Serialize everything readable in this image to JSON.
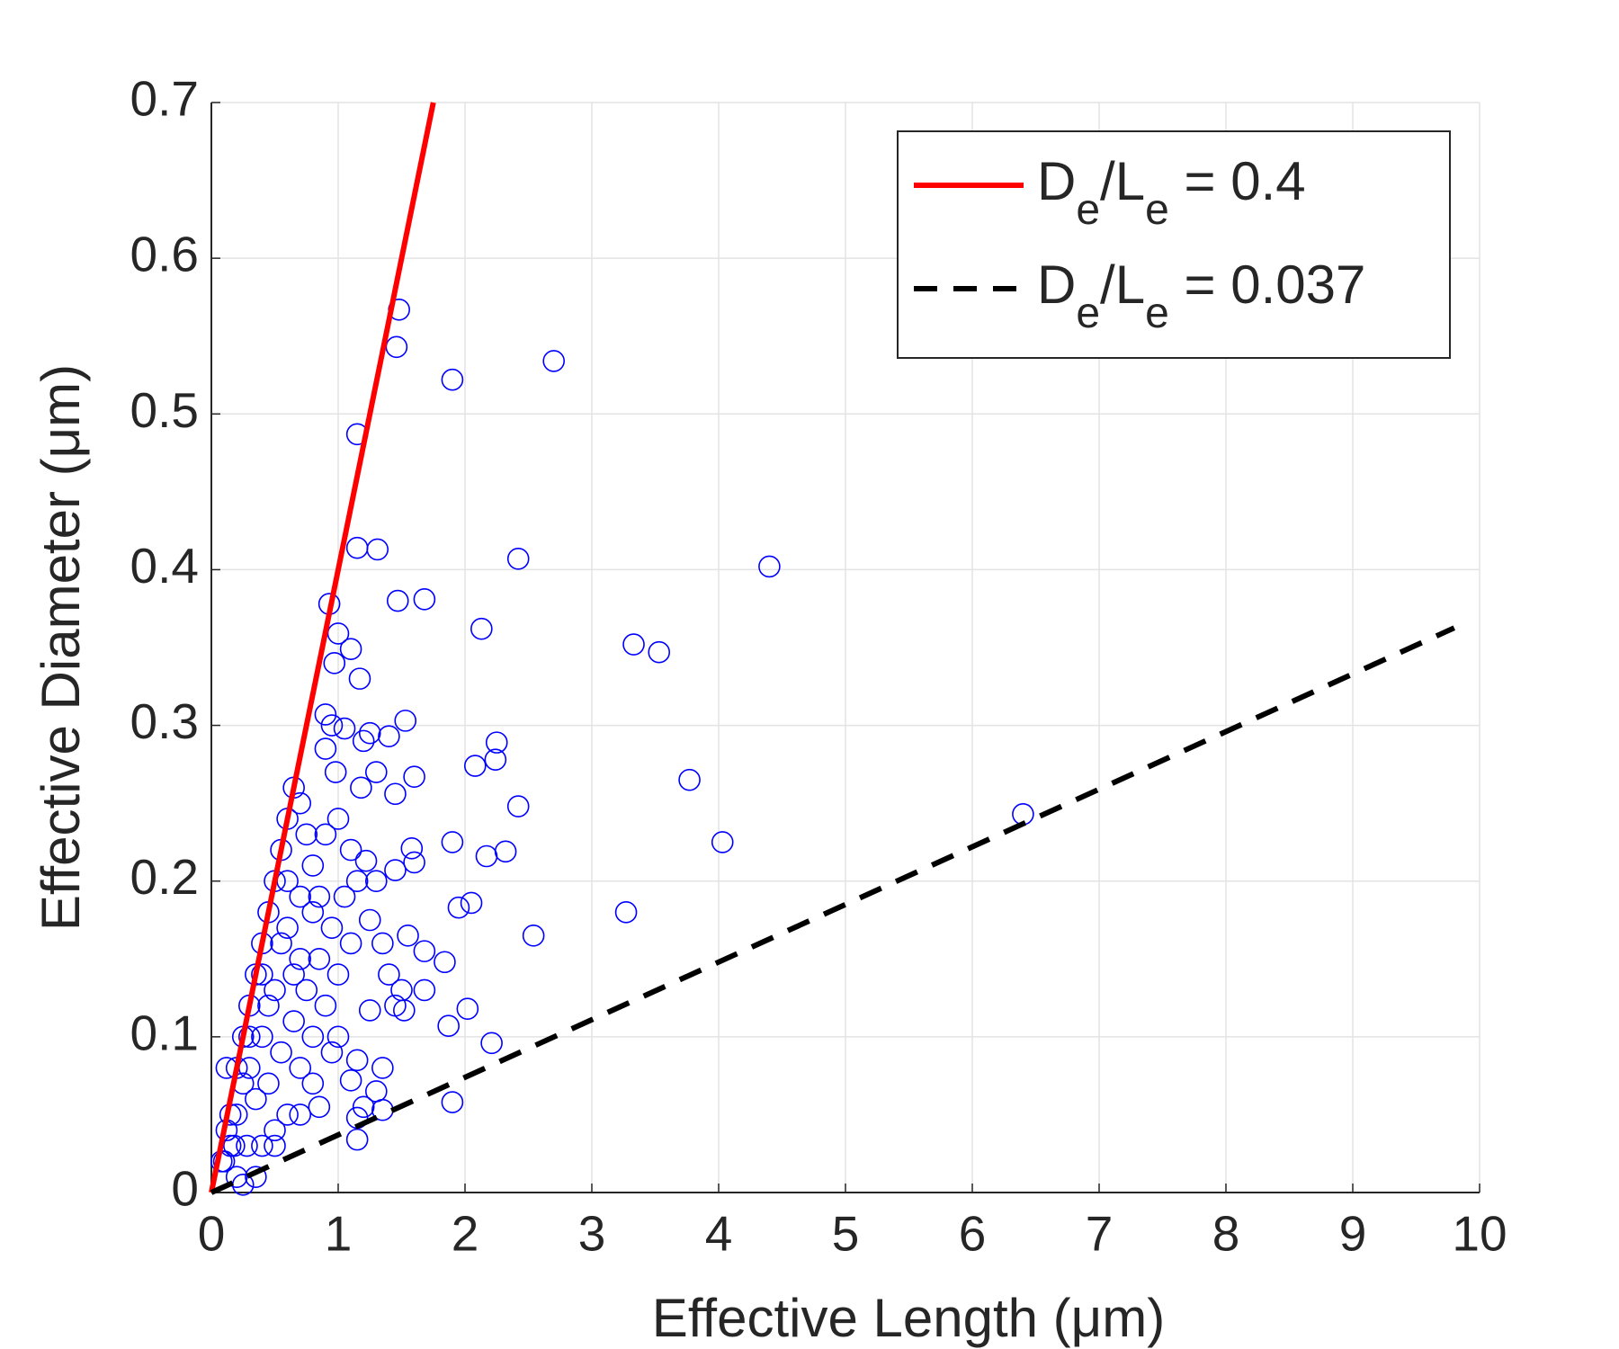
{
  "chart_data": {
    "type": "scatter",
    "xlabel": "Effective Length (μm)",
    "ylabel": "Effective Diameter (μm)",
    "xlim": [
      0,
      10
    ],
    "ylim": [
      0,
      0.7
    ],
    "xticks": [
      0,
      1,
      2,
      3,
      4,
      5,
      6,
      7,
      8,
      9,
      10
    ],
    "yticks": [
      0,
      0.1,
      0.2,
      0.3,
      0.4,
      0.5,
      0.6,
      0.7
    ],
    "grid": true,
    "legend": "top-right",
    "series": [
      {
        "type": "scatter",
        "color": "#0000ff",
        "x": [
          1.48,
          1.46,
          1.9,
          2.7,
          1.15,
          2.42,
          4.4,
          1.15,
          1.31,
          1.47,
          1.68,
          0.93,
          2.13,
          3.33,
          3.53,
          1.0,
          1.1,
          0.97,
          1.17,
          0.9,
          1.53,
          0.95,
          1.05,
          1.2,
          1.25,
          1.4,
          2.25,
          0.9,
          2.24,
          2.08,
          1.6,
          1.3,
          3.77,
          0.98,
          1.18,
          1.45,
          2.42,
          6.4,
          4.03,
          1.9,
          1.58,
          2.32,
          2.17,
          1.6,
          1.45,
          1.22,
          1.3,
          2.05,
          1.95,
          3.27,
          1.25,
          1.55,
          2.54,
          1.35,
          1.68,
          1.84,
          1.4,
          1.5,
          1.68,
          1.45,
          1.52,
          2.02,
          1.25,
          1.87,
          2.21,
          1.0,
          1.15,
          1.35,
          1.1,
          1.3,
          1.9,
          1.35,
          1.2,
          1.15,
          1.15,
          0.85,
          0.7,
          0.8,
          0.35,
          0.25,
          0.2,
          0.4,
          0.5,
          0.1,
          0.15,
          0.2,
          0.25,
          0.3,
          0.35,
          0.4,
          0.45,
          0.5,
          0.55,
          0.6,
          0.65,
          0.7,
          0.75,
          0.8,
          0.85,
          0.6,
          0.7,
          0.5,
          0.4,
          0.3,
          0.2,
          0.35,
          0.45,
          0.55,
          0.65,
          0.75,
          0.85,
          0.95,
          1.05,
          0.9,
          1.0,
          0.6,
          0.5,
          0.28,
          0.18,
          0.12,
          0.08,
          0.6,
          0.7,
          0.8,
          0.9,
          1.0,
          1.1,
          1.15,
          1.1,
          0.95,
          0.8,
          0.7,
          0.65,
          0.55,
          0.45,
          0.4,
          0.3,
          0.25,
          0.15,
          0.12
        ],
        "values": [
          0.567,
          0.543,
          0.522,
          0.534,
          0.487,
          0.407,
          0.402,
          0.414,
          0.413,
          0.38,
          0.381,
          0.378,
          0.362,
          0.352,
          0.347,
          0.359,
          0.349,
          0.34,
          0.33,
          0.307,
          0.303,
          0.3,
          0.298,
          0.29,
          0.295,
          0.293,
          0.289,
          0.285,
          0.278,
          0.274,
          0.267,
          0.27,
          0.265,
          0.27,
          0.26,
          0.256,
          0.248,
          0.243,
          0.225,
          0.225,
          0.221,
          0.219,
          0.216,
          0.212,
          0.207,
          0.213,
          0.2,
          0.186,
          0.183,
          0.18,
          0.175,
          0.165,
          0.165,
          0.16,
          0.155,
          0.148,
          0.14,
          0.13,
          0.13,
          0.12,
          0.117,
          0.118,
          0.117,
          0.107,
          0.096,
          0.1,
          0.085,
          0.08,
          0.072,
          0.065,
          0.058,
          0.053,
          0.055,
          0.048,
          0.034,
          0.055,
          0.05,
          0.07,
          0.01,
          0.005,
          0.01,
          0.03,
          0.03,
          0.02,
          0.05,
          0.08,
          0.1,
          0.12,
          0.14,
          0.16,
          0.18,
          0.2,
          0.22,
          0.24,
          0.26,
          0.25,
          0.23,
          0.21,
          0.19,
          0.17,
          0.15,
          0.13,
          0.1,
          0.08,
          0.05,
          0.06,
          0.07,
          0.09,
          0.11,
          0.13,
          0.15,
          0.17,
          0.19,
          0.12,
          0.14,
          0.05,
          0.04,
          0.03,
          0.03,
          0.04,
          0.02,
          0.2,
          0.19,
          0.18,
          0.23,
          0.24,
          0.22,
          0.2,
          0.16,
          0.09,
          0.1,
          0.08,
          0.14,
          0.16,
          0.12,
          0.14,
          0.1,
          0.07,
          0.03,
          0.08
        ]
      },
      {
        "type": "line",
        "name": "De/Le = 0.4",
        "color": "#ff0000",
        "dashed": false,
        "x": [
          0,
          1.75
        ],
        "values": [
          0,
          0.7
        ]
      },
      {
        "type": "line",
        "name": "De/Le = 0.037",
        "color": "#000000",
        "dashed": true,
        "x": [
          0,
          9.8
        ],
        "values": [
          0,
          0.3626
        ]
      }
    ]
  }
}
